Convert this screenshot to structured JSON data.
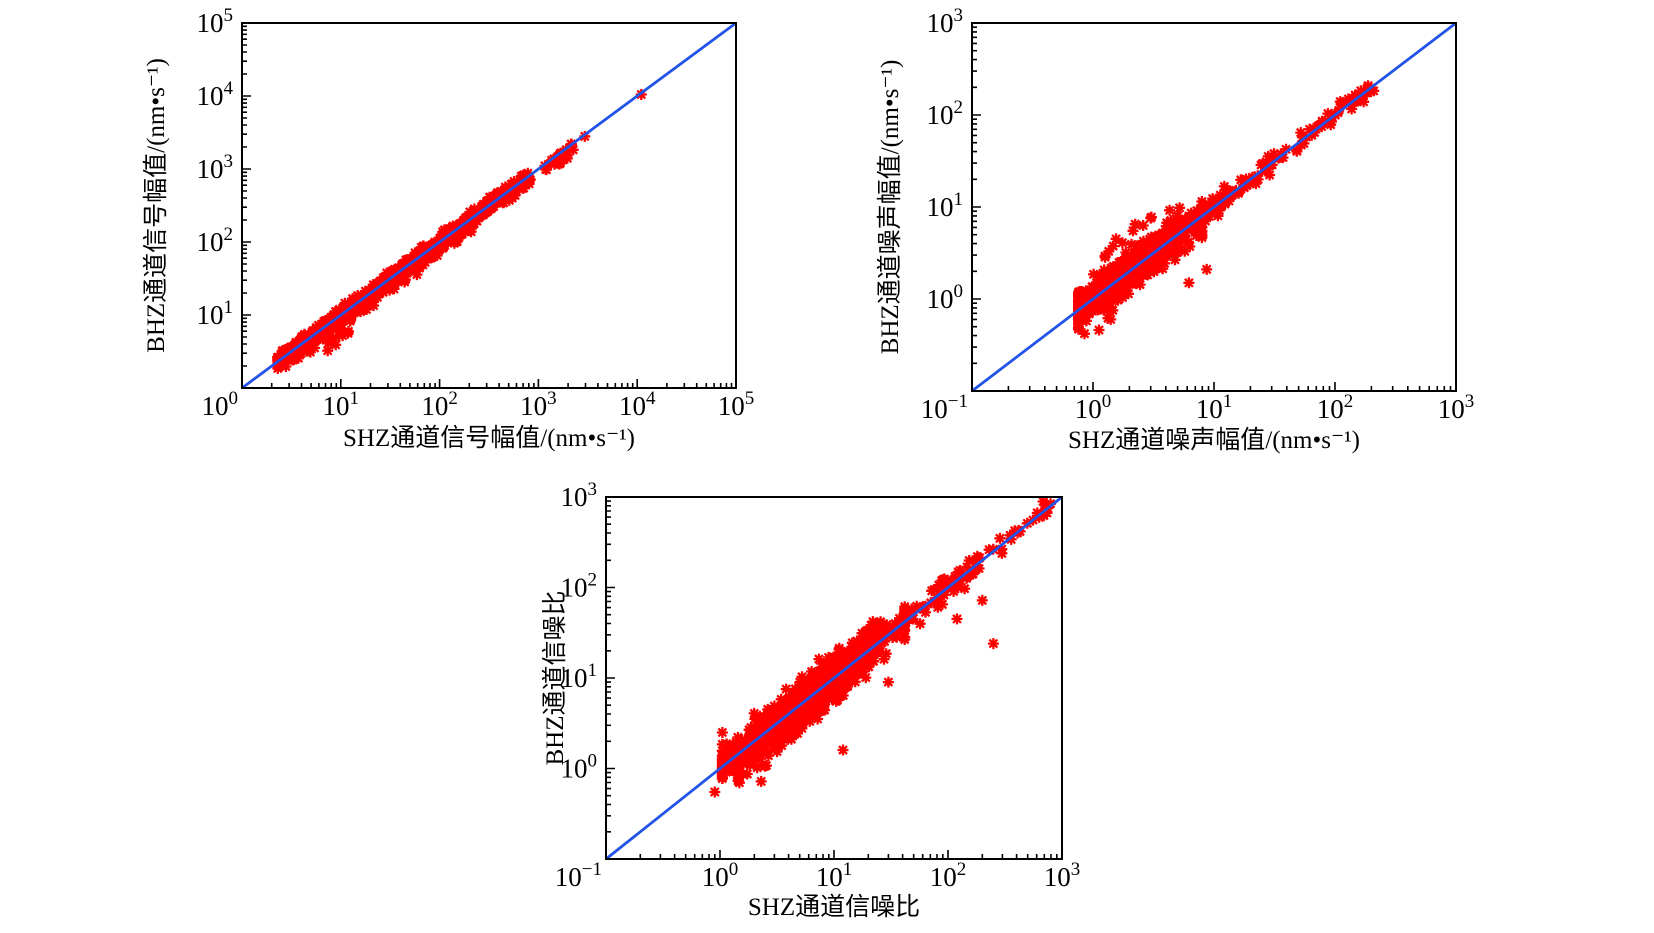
{
  "figure": {
    "background": "#ffffff",
    "marker_color": "#fe0000",
    "marker_shape": "asterisk-8-spoke",
    "line_color": "#2253e8",
    "axis_color": "#000000",
    "text_color": "#000000"
  },
  "chart_data": [
    {
      "id": "signal",
      "type": "scatter",
      "title": "",
      "xlabel": "SHZ通道信号幅值/(nm•s⁻¹)",
      "ylabel": "BHZ通道信号幅值/(nm•s⁻¹)",
      "x_scale": "log",
      "y_scale": "log",
      "xlim": [
        1,
        100000
      ],
      "ylim": [
        1,
        100000
      ],
      "x_range_exp": [
        0,
        5
      ],
      "y_range_exp": [
        0,
        5
      ],
      "grid": false,
      "legend": "none",
      "reference_line": {
        "meaning": "1:1 identity",
        "from": [
          1,
          1
        ],
        "to": [
          100000,
          100000
        ]
      },
      "clusters": [
        {
          "type": "band",
          "count": 1300,
          "log_start": 0.36,
          "log_end": 2.62,
          "perp_sigma": 0.042,
          "offset": 0,
          "low_bias": 1.15
        },
        {
          "type": "band",
          "count": 260,
          "log_start": 0.42,
          "log_end": 2.35,
          "perp_sigma": 0.05,
          "offset": -0.075
        },
        {
          "type": "band",
          "count": 110,
          "log_start": 2.62,
          "log_end": 2.92,
          "perp_sigma": 0.05,
          "offset": -0.02
        },
        {
          "type": "blob",
          "count": 12,
          "center": 0.95,
          "along_sigma": 0.07,
          "clip": [
            0.8,
            1.1
          ],
          "perp_sigma": 0.05,
          "offset": -0.28
        },
        {
          "type": "blob",
          "count": 26,
          "center": 3.2,
          "along_sigma": 0.09,
          "clip": [
            3.02,
            3.36
          ],
          "perp_sigma": 0.045,
          "offset": -0.07
        }
      ],
      "outliers": [
        [
          760,
          760
        ],
        [
          2950,
          2800
        ],
        [
          11000,
          10500
        ]
      ]
    },
    {
      "id": "noise",
      "type": "scatter",
      "title": "",
      "xlabel": "SHZ通道噪声幅值/(nm•s⁻¹)",
      "ylabel": "BHZ通道噪声幅值/(nm•s⁻¹)",
      "x_scale": "log",
      "y_scale": "log",
      "xlim": [
        0.1,
        1000
      ],
      "ylim": [
        0.1,
        1000
      ],
      "x_range_exp": [
        -1,
        3
      ],
      "y_range_exp": [
        -1,
        3
      ],
      "grid": false,
      "legend": "none",
      "reference_line": {
        "meaning": "1:1 identity",
        "from": [
          0.1,
          0.1
        ],
        "to": [
          1000,
          1000
        ]
      },
      "clusters": [
        {
          "type": "blob",
          "count": 760,
          "center": 0.33,
          "along_sigma": 0.3,
          "clip": [
            -0.12,
            0.9
          ],
          "perp_sigma": 0.105
        },
        {
          "type": "band",
          "count": 70,
          "log_start": 0.9,
          "log_end": 1.5,
          "perp_sigma": 0.055
        },
        {
          "type": "band",
          "count": 42,
          "log_start": 1.5,
          "log_end": 2.26,
          "perp_sigma": 0.04
        },
        {
          "type": "blob",
          "count": 16,
          "center": 2.24,
          "along_sigma": 0.05,
          "clip": [
            2.12,
            2.32
          ],
          "perp_sigma": 0.03
        },
        {
          "type": "blob",
          "count": 9,
          "center": 0.42,
          "along_sigma": 0.18,
          "clip": [
            0.1,
            0.75
          ],
          "perp_sigma": 0.05,
          "offset": 0.42
        }
      ],
      "outliers": [
        [
          1.35,
          3.3
        ],
        [
          2.6,
          6.3
        ],
        [
          4.3,
          9.2
        ],
        [
          5.2,
          9.8
        ],
        [
          0.85,
          0.42
        ],
        [
          1.12,
          0.46
        ],
        [
          1.4,
          0.6
        ],
        [
          8.7,
          2.1
        ],
        [
          6.2,
          1.5
        ]
      ]
    },
    {
      "id": "snr",
      "type": "scatter",
      "title": "",
      "xlabel": "SHZ通道信噪比",
      "ylabel": "BHZ通道信噪比",
      "x_scale": "log",
      "y_scale": "log",
      "xlim": [
        0.1,
        1000
      ],
      "ylim": [
        0.1,
        1000
      ],
      "x_range_exp": [
        -1,
        3
      ],
      "y_range_exp": [
        -1,
        3
      ],
      "grid": false,
      "legend": "none",
      "reference_line": {
        "meaning": "1:1 identity",
        "from": [
          0.1,
          0.1
        ],
        "to": [
          1000,
          1000
        ]
      },
      "clusters": [
        {
          "type": "blob",
          "count": 980,
          "center": 0.78,
          "along_sigma": 0.4,
          "clip": [
            0.02,
            1.62
          ],
          "perp_sigma": 0.1
        },
        {
          "type": "band",
          "count": 90,
          "log_start": 0.1,
          "log_end": 1.25,
          "perp_sigma": 0.07,
          "offset": -0.21
        },
        {
          "type": "band",
          "count": 60,
          "log_start": 0.25,
          "log_end": 1.35,
          "perp_sigma": 0.06,
          "offset": 0.17
        },
        {
          "type": "band",
          "count": 65,
          "log_start": 1.62,
          "log_end": 2.28,
          "perp_sigma": 0.07
        },
        {
          "type": "band",
          "count": 12,
          "log_start": 2.3,
          "log_end": 2.72,
          "perp_sigma": 0.05
        },
        {
          "type": "blob",
          "count": 10,
          "center": 2.82,
          "along_sigma": 0.05,
          "clip": [
            2.72,
            2.9
          ],
          "perp_sigma": 0.04
        }
      ],
      "outliers": [
        [
          3,
          4.9
        ],
        [
          1.05,
          2.5
        ],
        [
          12,
          1.6
        ],
        [
          30,
          9
        ],
        [
          120,
          45
        ],
        [
          250,
          24
        ],
        [
          200,
          72
        ],
        [
          2.3,
          0.72
        ],
        [
          0.9,
          0.55
        ]
      ]
    }
  ]
}
